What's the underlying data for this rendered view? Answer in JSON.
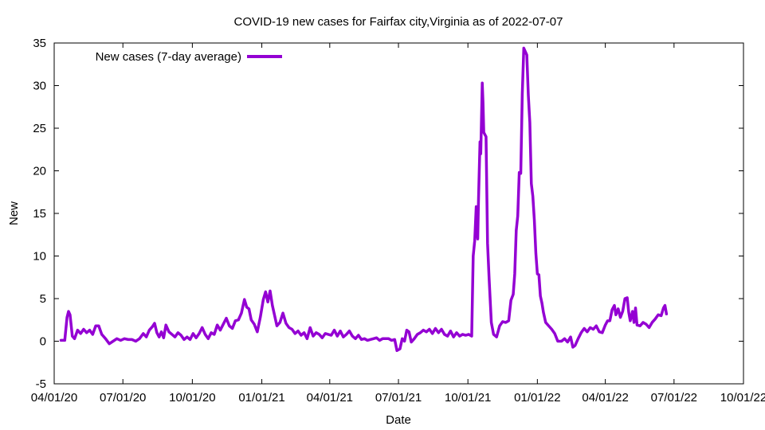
{
  "chart_data": {
    "type": "line",
    "title": "COVID-19 new cases for Fairfax city,Virginia as of 2022-07-07",
    "xlabel": "Date",
    "ylabel": "New",
    "xlim": [
      "2020-04-01",
      "2022-10-01"
    ],
    "ylim": [
      -5,
      35
    ],
    "y_ticks": [
      -5,
      0,
      5,
      10,
      15,
      20,
      25,
      30,
      35
    ],
    "x_ticks": [
      {
        "date": "2020-04-01",
        "label": "04/01/20"
      },
      {
        "date": "2020-07-01",
        "label": "07/01/20"
      },
      {
        "date": "2020-10-01",
        "label": "10/01/20"
      },
      {
        "date": "2021-01-01",
        "label": "01/01/21"
      },
      {
        "date": "2021-04-01",
        "label": "04/01/21"
      },
      {
        "date": "2021-07-01",
        "label": "07/01/21"
      },
      {
        "date": "2021-10-01",
        "label": "10/01/21"
      },
      {
        "date": "2022-01-01",
        "label": "01/01/22"
      },
      {
        "date": "2022-04-01",
        "label": "04/01/22"
      },
      {
        "date": "2022-07-01",
        "label": "07/01/22"
      },
      {
        "date": "2022-10-01",
        "label": "10/01/22"
      }
    ],
    "grid": false,
    "legend_position": "top-left",
    "series": [
      {
        "name": "New cases (7-day average)",
        "color": "#9400d3",
        "points": [
          [
            "2020-04-10",
            0.1
          ],
          [
            "2020-04-15",
            0.1
          ],
          [
            "2020-04-18",
            2.8
          ],
          [
            "2020-04-20",
            3.5
          ],
          [
            "2020-04-22",
            3.1
          ],
          [
            "2020-04-25",
            0.6
          ],
          [
            "2020-04-28",
            0.3
          ],
          [
            "2020-05-02",
            1.3
          ],
          [
            "2020-05-06",
            0.9
          ],
          [
            "2020-05-10",
            1.4
          ],
          [
            "2020-05-14",
            1.0
          ],
          [
            "2020-05-18",
            1.3
          ],
          [
            "2020-05-22",
            0.8
          ],
          [
            "2020-05-26",
            1.8
          ],
          [
            "2020-05-30",
            1.8
          ],
          [
            "2020-06-03",
            0.8
          ],
          [
            "2020-06-08",
            0.3
          ],
          [
            "2020-06-13",
            -0.3
          ],
          [
            "2020-06-18",
            0.0
          ],
          [
            "2020-06-23",
            0.3
          ],
          [
            "2020-06-28",
            0.1
          ],
          [
            "2020-07-03",
            0.3
          ],
          [
            "2020-07-08",
            0.2
          ],
          [
            "2020-07-13",
            0.2
          ],
          [
            "2020-07-18",
            0.0
          ],
          [
            "2020-07-23",
            0.3
          ],
          [
            "2020-07-28",
            0.9
          ],
          [
            "2020-08-01",
            0.5
          ],
          [
            "2020-08-05",
            1.3
          ],
          [
            "2020-08-09",
            1.7
          ],
          [
            "2020-08-12",
            2.1
          ],
          [
            "2020-08-15",
            1.0
          ],
          [
            "2020-08-18",
            0.5
          ],
          [
            "2020-08-21",
            1.1
          ],
          [
            "2020-08-24",
            0.4
          ],
          [
            "2020-08-27",
            1.9
          ],
          [
            "2020-08-31",
            1.1
          ],
          [
            "2020-09-04",
            0.8
          ],
          [
            "2020-09-08",
            0.5
          ],
          [
            "2020-09-12",
            1.0
          ],
          [
            "2020-09-16",
            0.7
          ],
          [
            "2020-09-20",
            0.2
          ],
          [
            "2020-09-24",
            0.5
          ],
          [
            "2020-09-28",
            0.2
          ],
          [
            "2020-10-02",
            0.9
          ],
          [
            "2020-10-06",
            0.4
          ],
          [
            "2020-10-10",
            0.9
          ],
          [
            "2020-10-14",
            1.6
          ],
          [
            "2020-10-18",
            0.8
          ],
          [
            "2020-10-22",
            0.3
          ],
          [
            "2020-10-26",
            1.0
          ],
          [
            "2020-10-30",
            0.8
          ],
          [
            "2020-11-03",
            1.9
          ],
          [
            "2020-11-07",
            1.3
          ],
          [
            "2020-11-11",
            2.0
          ],
          [
            "2020-11-15",
            2.7
          ],
          [
            "2020-11-19",
            1.8
          ],
          [
            "2020-11-23",
            1.5
          ],
          [
            "2020-11-27",
            2.4
          ],
          [
            "2020-12-01",
            2.5
          ],
          [
            "2020-12-05",
            3.3
          ],
          [
            "2020-12-09",
            4.9
          ],
          [
            "2020-12-12",
            4.0
          ],
          [
            "2020-12-15",
            3.8
          ],
          [
            "2020-12-18",
            2.5
          ],
          [
            "2020-12-22",
            2.0
          ],
          [
            "2020-12-26",
            1.1
          ],
          [
            "2020-12-30",
            2.8
          ],
          [
            "2021-01-03",
            4.9
          ],
          [
            "2021-01-06",
            5.8
          ],
          [
            "2021-01-09",
            4.6
          ],
          [
            "2021-01-12",
            5.9
          ],
          [
            "2021-01-15",
            4.2
          ],
          [
            "2021-01-18",
            3.0
          ],
          [
            "2021-01-21",
            1.8
          ],
          [
            "2021-01-25",
            2.2
          ],
          [
            "2021-01-29",
            3.3
          ],
          [
            "2021-02-02",
            2.1
          ],
          [
            "2021-02-06",
            1.6
          ],
          [
            "2021-02-10",
            1.4
          ],
          [
            "2021-02-14",
            0.9
          ],
          [
            "2021-02-18",
            1.2
          ],
          [
            "2021-02-22",
            0.7
          ],
          [
            "2021-02-26",
            1.0
          ],
          [
            "2021-03-02",
            0.3
          ],
          [
            "2021-03-06",
            1.6
          ],
          [
            "2021-03-10",
            0.6
          ],
          [
            "2021-03-14",
            1.0
          ],
          [
            "2021-03-18",
            0.8
          ],
          [
            "2021-03-22",
            0.4
          ],
          [
            "2021-03-26",
            0.9
          ],
          [
            "2021-03-30",
            0.8
          ],
          [
            "2021-04-03",
            0.7
          ],
          [
            "2021-04-07",
            1.3
          ],
          [
            "2021-04-11",
            0.6
          ],
          [
            "2021-04-15",
            1.2
          ],
          [
            "2021-04-19",
            0.5
          ],
          [
            "2021-04-23",
            0.8
          ],
          [
            "2021-04-27",
            1.2
          ],
          [
            "2021-05-01",
            0.6
          ],
          [
            "2021-05-05",
            0.3
          ],
          [
            "2021-05-09",
            0.7
          ],
          [
            "2021-05-13",
            0.2
          ],
          [
            "2021-05-17",
            0.3
          ],
          [
            "2021-05-21",
            0.1
          ],
          [
            "2021-05-25",
            0.2
          ],
          [
            "2021-05-29",
            0.3
          ],
          [
            "2021-06-02",
            0.4
          ],
          [
            "2021-06-06",
            0.1
          ],
          [
            "2021-06-10",
            0.3
          ],
          [
            "2021-06-14",
            0.3
          ],
          [
            "2021-06-18",
            0.3
          ],
          [
            "2021-06-22",
            0.1
          ],
          [
            "2021-06-26",
            0.2
          ],
          [
            "2021-06-29",
            -1.1
          ],
          [
            "2021-07-03",
            -0.9
          ],
          [
            "2021-07-06",
            0.3
          ],
          [
            "2021-07-09",
            0.0
          ],
          [
            "2021-07-12",
            1.3
          ],
          [
            "2021-07-15",
            1.1
          ],
          [
            "2021-07-18",
            -0.1
          ],
          [
            "2021-07-22",
            0.3
          ],
          [
            "2021-07-26",
            0.8
          ],
          [
            "2021-07-30",
            1.0
          ],
          [
            "2021-08-03",
            1.3
          ],
          [
            "2021-08-07",
            1.1
          ],
          [
            "2021-08-11",
            1.4
          ],
          [
            "2021-08-15",
            0.9
          ],
          [
            "2021-08-19",
            1.5
          ],
          [
            "2021-08-23",
            1.0
          ],
          [
            "2021-08-27",
            1.4
          ],
          [
            "2021-08-31",
            0.8
          ],
          [
            "2021-09-04",
            0.6
          ],
          [
            "2021-09-08",
            1.2
          ],
          [
            "2021-09-12",
            0.5
          ],
          [
            "2021-09-16",
            1.0
          ],
          [
            "2021-09-20",
            0.6
          ],
          [
            "2021-09-24",
            0.8
          ],
          [
            "2021-09-28",
            0.7
          ],
          [
            "2021-10-02",
            0.8
          ],
          [
            "2021-10-06",
            0.6
          ],
          [
            "2021-10-08",
            10.0
          ],
          [
            "2021-10-10",
            11.8
          ],
          [
            "2021-10-12",
            15.8
          ],
          [
            "2021-10-14",
            12.0
          ],
          [
            "2021-10-15",
            16.5
          ],
          [
            "2021-10-17",
            23.4
          ],
          [
            "2021-10-18",
            22.0
          ],
          [
            "2021-10-20",
            30.3
          ],
          [
            "2021-10-21",
            28.0
          ],
          [
            "2021-10-22",
            24.5
          ],
          [
            "2021-10-25",
            24.0
          ],
          [
            "2021-10-27",
            11.5
          ],
          [
            "2021-10-29",
            7.5
          ],
          [
            "2021-11-01",
            2.2
          ],
          [
            "2021-11-04",
            0.8
          ],
          [
            "2021-11-08",
            0.5
          ],
          [
            "2021-11-12",
            1.8
          ],
          [
            "2021-11-16",
            2.3
          ],
          [
            "2021-11-20",
            2.2
          ],
          [
            "2021-11-24",
            2.4
          ],
          [
            "2021-11-27",
            4.8
          ],
          [
            "2021-11-30",
            5.5
          ],
          [
            "2021-12-02",
            7.9
          ],
          [
            "2021-12-04",
            13.0
          ],
          [
            "2021-12-06",
            14.7
          ],
          [
            "2021-12-08",
            19.8
          ],
          [
            "2021-12-10",
            19.7
          ],
          [
            "2021-12-12",
            29.0
          ],
          [
            "2021-12-14",
            34.4
          ],
          [
            "2021-12-16",
            34.0
          ],
          [
            "2021-12-18",
            33.6
          ],
          [
            "2021-12-20",
            28.9
          ],
          [
            "2021-12-22",
            25.7
          ],
          [
            "2021-12-24",
            18.5
          ],
          [
            "2021-12-26",
            17.0
          ],
          [
            "2021-12-28",
            14.2
          ],
          [
            "2021-12-30",
            10.3
          ],
          [
            "2022-01-01",
            7.9
          ],
          [
            "2022-01-03",
            7.8
          ],
          [
            "2022-01-05",
            5.3
          ],
          [
            "2022-01-07",
            4.5
          ],
          [
            "2022-01-09",
            3.4
          ],
          [
            "2022-01-12",
            2.2
          ],
          [
            "2022-01-16",
            1.8
          ],
          [
            "2022-01-20",
            1.4
          ],
          [
            "2022-01-24",
            0.9
          ],
          [
            "2022-01-28",
            0.0
          ],
          [
            "2022-02-02",
            0.0
          ],
          [
            "2022-02-06",
            0.3
          ],
          [
            "2022-02-10",
            -0.1
          ],
          [
            "2022-02-14",
            0.5
          ],
          [
            "2022-02-17",
            -0.7
          ],
          [
            "2022-02-20",
            -0.5
          ],
          [
            "2022-02-24",
            0.3
          ],
          [
            "2022-02-28",
            1.0
          ],
          [
            "2022-03-04",
            1.5
          ],
          [
            "2022-03-08",
            1.1
          ],
          [
            "2022-03-12",
            1.6
          ],
          [
            "2022-03-16",
            1.4
          ],
          [
            "2022-03-20",
            1.8
          ],
          [
            "2022-03-24",
            1.1
          ],
          [
            "2022-03-28",
            1.0
          ],
          [
            "2022-04-01",
            1.9
          ],
          [
            "2022-04-04",
            2.4
          ],
          [
            "2022-04-07",
            2.4
          ],
          [
            "2022-04-10",
            3.7
          ],
          [
            "2022-04-13",
            4.2
          ],
          [
            "2022-04-15",
            3.1
          ],
          [
            "2022-04-18",
            3.8
          ],
          [
            "2022-04-21",
            2.8
          ],
          [
            "2022-04-24",
            3.5
          ],
          [
            "2022-04-27",
            5.0
          ],
          [
            "2022-04-30",
            5.1
          ],
          [
            "2022-05-02",
            3.4
          ],
          [
            "2022-05-04",
            2.4
          ],
          [
            "2022-05-07",
            3.5
          ],
          [
            "2022-05-09",
            2.2
          ],
          [
            "2022-05-11",
            3.9
          ],
          [
            "2022-05-13",
            1.9
          ],
          [
            "2022-05-17",
            1.8
          ],
          [
            "2022-05-21",
            2.2
          ],
          [
            "2022-05-25",
            2.0
          ],
          [
            "2022-05-29",
            1.6
          ],
          [
            "2022-06-02",
            2.2
          ],
          [
            "2022-06-06",
            2.6
          ],
          [
            "2022-06-10",
            3.1
          ],
          [
            "2022-06-14",
            3.0
          ],
          [
            "2022-06-17",
            3.9
          ],
          [
            "2022-06-19",
            4.2
          ],
          [
            "2022-06-21",
            3.2
          ]
        ]
      }
    ]
  }
}
